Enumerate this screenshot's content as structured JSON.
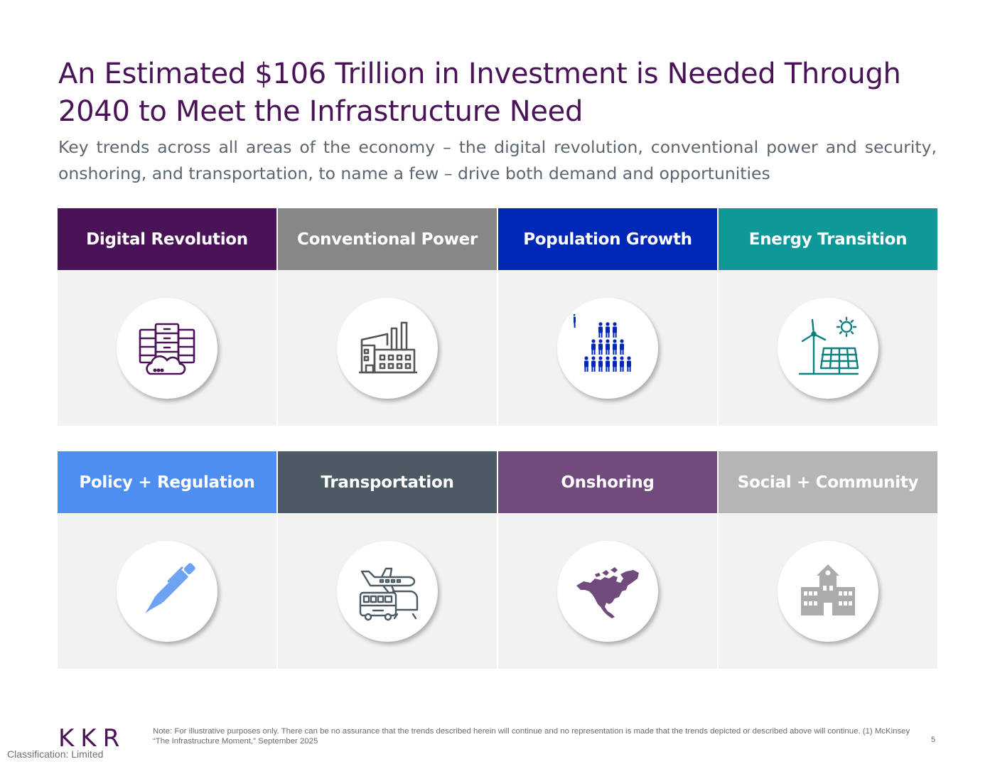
{
  "title": "An Estimated $106 Trillion in Investment is Needed Through 2040 to Meet the Infrastructure Need",
  "subtitle": "Key trends across all areas of the economy – the digital revolution, conventional power and security, onshoring, and transportation, to name a few – drive both demand and opportunities",
  "trends": [
    {
      "label": "Digital Revolution",
      "color": "#4a1257",
      "icon": "server-cloud-icon",
      "icon_color": "#4a1257"
    },
    {
      "label": "Conventional Power",
      "color": "#878787",
      "icon": "factory-icon",
      "icon_color": "#555555"
    },
    {
      "label": "Population Growth",
      "color": "#0027b5",
      "icon": "population-icon",
      "icon_color": "#0027b5"
    },
    {
      "label": "Energy Transition",
      "color": "#0e9898",
      "icon": "wind-solar-icon",
      "icon_color": "#0e7f7f"
    },
    {
      "label": "Policy + Regulation",
      "color": "#4d8ef0",
      "icon": "pen-icon",
      "icon_color": "#6ea2f2"
    },
    {
      "label": "Transportation",
      "color": "#4b5a63",
      "icon": "transport-icon",
      "icon_color": "#4b5a63"
    },
    {
      "label": "Onshoring",
      "color": "#714a7e",
      "icon": "north-america-icon",
      "icon_color": "#714a7e"
    },
    {
      "label": "Social + Community",
      "color": "#b5b5b5",
      "icon": "school-building-icon",
      "icon_color": "#ababab"
    }
  ],
  "footer": {
    "logo": "KKR",
    "classification": "Classification: Limited",
    "note": "Note: For illustrative purposes only. There can be no assurance that the trends described herein will continue and no representation is made that the trends depicted or described above will continue. (1) McKinsey “The Infrastructure Moment,” September 2025",
    "page_number": "5"
  }
}
